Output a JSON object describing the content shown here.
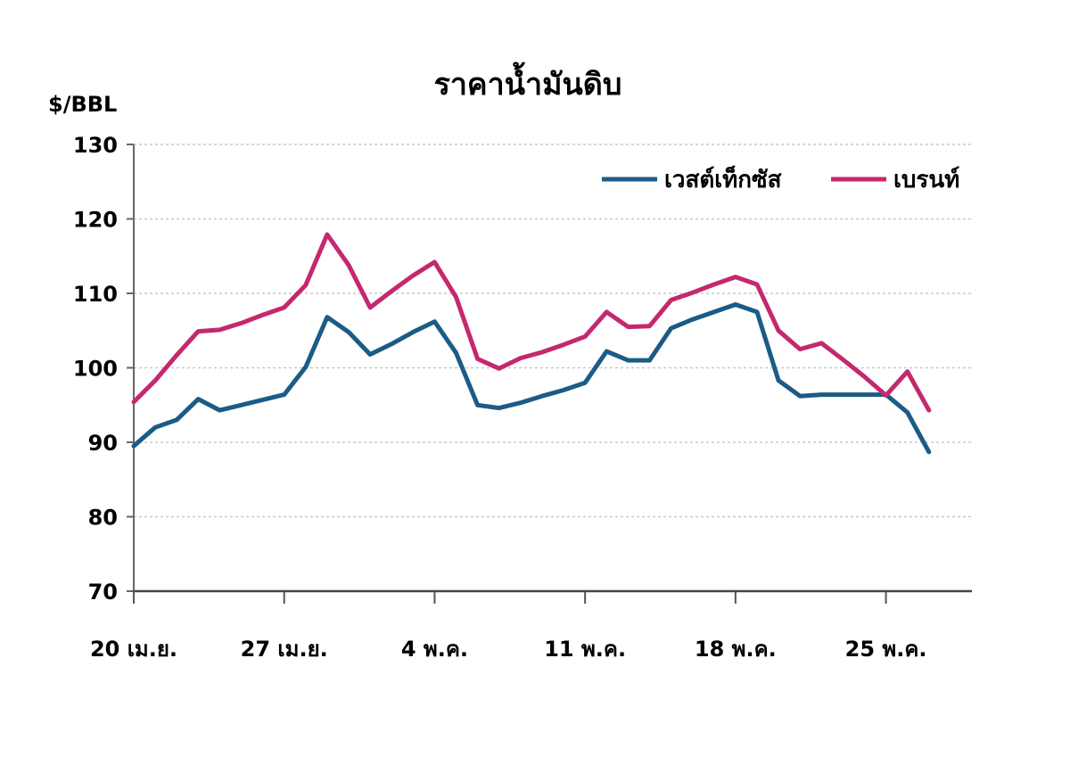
{
  "chart_data": {
    "type": "line",
    "title": "ราคาน้ำมันดิบ",
    "ylabel": "$/BBL",
    "xlabel": "",
    "ylim": [
      70,
      130
    ],
    "yticks": [
      130,
      120,
      110,
      100,
      90,
      80,
      70
    ],
    "xtick_labels": [
      "20 เม.ย.",
      "27 เม.ย.",
      "4 พ.ค.",
      "11 พ.ค.",
      "18 พ.ค.",
      "25 พ.ค."
    ],
    "xtick_positions": [
      0,
      7,
      14,
      21,
      28,
      35
    ],
    "xlim": [
      0,
      39
    ],
    "grid": true,
    "legend_position": "top-right",
    "series": [
      {
        "name": "เวสต์เท็กซัส",
        "color": "#1b5b86",
        "x": [
          0,
          1,
          2,
          3,
          4,
          5,
          6,
          7,
          8,
          9,
          10,
          11,
          12,
          13,
          14,
          15,
          16,
          17,
          18,
          19,
          20,
          21,
          22,
          23,
          24,
          25,
          26,
          27,
          28,
          29,
          30,
          31,
          32,
          33,
          34,
          35,
          36,
          37
        ],
        "values": [
          89.5,
          92,
          93,
          95.8,
          94.3,
          95,
          95.7,
          96.4,
          100.1,
          106.8,
          104.8,
          101.8,
          103.2,
          104.8,
          106.2,
          102,
          95,
          94.6,
          95.3,
          96.2,
          97,
          98,
          102.2,
          101,
          101,
          105.3,
          106.5,
          107.5,
          108.5,
          107.5,
          98.3,
          96.2,
          96.4,
          96.4,
          96.4,
          96.4,
          94,
          88.7
        ]
      },
      {
        "name": "เบรนท์",
        "color": "#c4286e",
        "x": [
          0,
          1,
          2,
          3,
          4,
          5,
          6,
          7,
          8,
          9,
          10,
          11,
          12,
          13,
          14,
          15,
          16,
          17,
          18,
          19,
          20,
          21,
          22,
          23,
          24,
          25,
          26,
          27,
          28,
          29,
          30,
          31,
          32,
          33,
          34,
          35,
          36,
          37
        ],
        "values": [
          95.4,
          98.3,
          101.7,
          104.9,
          105.1,
          106,
          107.1,
          108.1,
          111.1,
          117.9,
          113.8,
          108.1,
          110.3,
          112.4,
          114.2,
          109.5,
          101.2,
          99.9,
          101.3,
          102.1,
          103.1,
          104.2,
          107.5,
          105.5,
          105.6,
          109.1,
          110.1,
          111.2,
          112.2,
          111.2,
          105,
          102.5,
          103.3,
          101.1,
          98.8,
          96.3,
          99.5,
          94.3
        ]
      }
    ]
  }
}
